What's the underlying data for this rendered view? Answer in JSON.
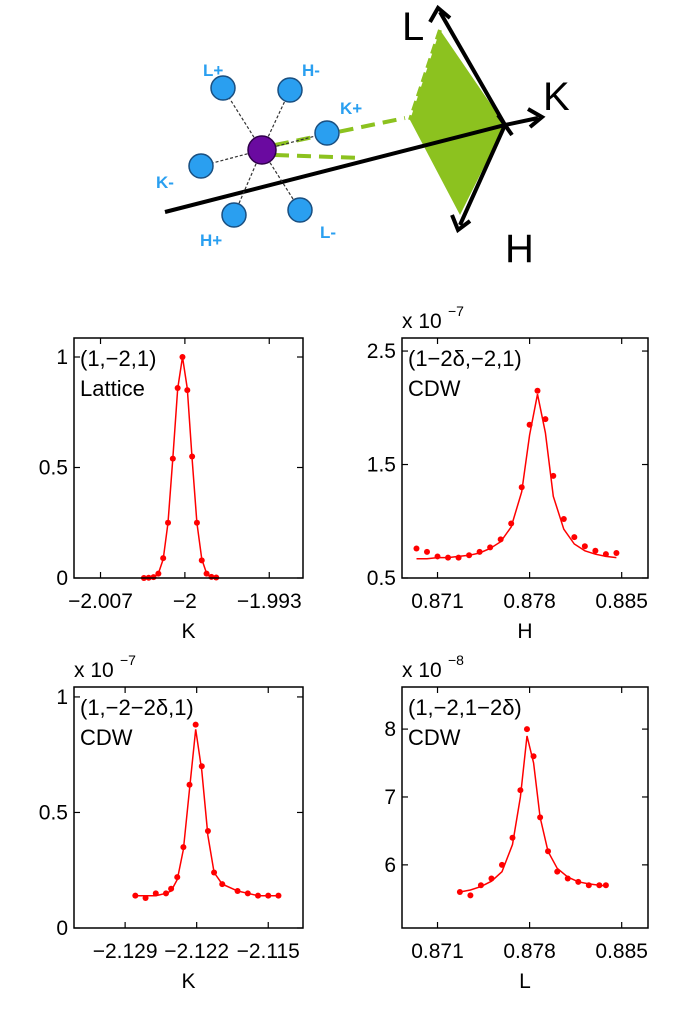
{
  "diagram": {
    "labels": [
      "L+",
      "H-",
      "K+",
      "K-",
      "H+",
      "L-"
    ],
    "axes": [
      "L",
      "K",
      "H"
    ]
  },
  "chart_data": [
    {
      "type": "line",
      "annotations": [
        "(1,−2,1)",
        "Lattice"
      ],
      "xlabel": "K",
      "x": [
        -2.0034,
        -2.003,
        -2.0026,
        -2.0022,
        -2.0018,
        -2.0014,
        -2.001,
        -2.0006,
        -2.0002,
        -1.9998,
        -1.9994,
        -1.999,
        -1.9986,
        -1.9982,
        -1.9978,
        -1.9974
      ],
      "series": [
        {
          "color": "#ff0000",
          "style": "markers",
          "values": [
            0,
            0.001,
            0.004,
            0.02,
            0.09,
            0.25,
            0.54,
            0.86,
            1,
            0.85,
            0.55,
            0.25,
            0.08,
            0.02,
            0.005,
            0.002
          ]
        },
        {
          "color": "#ff0000",
          "style": "line",
          "values": [
            0,
            0.001,
            0.004,
            0.021,
            0.085,
            0.25,
            0.54,
            0.857,
            1,
            0.857,
            0.54,
            0.25,
            0.085,
            0.021,
            0.004,
            0.001
          ]
        }
      ],
      "xlim": [
        -2.0092,
        -1.9902
      ],
      "ylim": [
        0,
        1.086
      ],
      "xticks": [
        {
          "value": -2.007,
          "label": "−2.007"
        },
        {
          "value": -2,
          "label": "−2"
        },
        {
          "value": -1.993,
          "label": "−1.993"
        }
      ],
      "yticks": [
        0,
        0.5,
        1
      ]
    },
    {
      "type": "line",
      "annotations": [
        "(1−2δ,−2,1)",
        "CDW"
      ],
      "xlabel": "H",
      "multiplier": "x 10",
      "exponent": "−7",
      "x": [
        0.8694,
        0.8702,
        0.871,
        0.8718,
        0.8726,
        0.8734,
        0.8742,
        0.875,
        0.8758,
        0.8766,
        0.8774,
        0.878,
        0.8786,
        0.8792,
        0.8798,
        0.8806,
        0.8814,
        0.8822,
        0.883,
        0.8838,
        0.8846
      ],
      "series": [
        {
          "color": "#ff0000",
          "style": "markers",
          "values": [
            0.76,
            0.73,
            0.69,
            0.68,
            0.68,
            0.7,
            0.73,
            0.77,
            0.84,
            0.98,
            1.3,
            1.85,
            2.15,
            1.9,
            1.4,
            1.02,
            0.86,
            0.78,
            0.74,
            0.71,
            0.72
          ]
        },
        {
          "color": "#ff0000",
          "style": "line",
          "values": [
            0.67,
            0.67,
            0.68,
            0.68,
            0.69,
            0.7,
            0.72,
            0.76,
            0.82,
            0.95,
            1.26,
            1.76,
            2.12,
            1.78,
            1.22,
            0.93,
            0.8,
            0.74,
            0.71,
            0.69,
            0.68
          ]
        }
      ],
      "xlim": [
        0.8683,
        0.887
      ],
      "ylim": [
        0.5,
        2.615
      ],
      "xticks": [
        0.871,
        0.878,
        0.885
      ],
      "yticks": [
        0.5,
        1.5,
        2.5
      ]
    },
    {
      "type": "line",
      "annotations": [
        "(1,−2−2δ,1)",
        "CDW"
      ],
      "xlabel": "K",
      "multiplier": "x 10",
      "exponent": "−7",
      "x": [
        -2.128,
        -2.127,
        -2.126,
        -2.125,
        -2.1245,
        -2.1239,
        -2.1233,
        -2.1227,
        -2.1221,
        -2.1215,
        -2.1209,
        -2.1203,
        -2.1195,
        -2.118,
        -2.117,
        -2.116,
        -2.115,
        -2.114
      ],
      "series": [
        {
          "color": "#ff0000",
          "style": "markers",
          "values": [
            0.14,
            0.13,
            0.15,
            0.15,
            0.17,
            0.22,
            0.35,
            0.62,
            0.88,
            0.7,
            0.42,
            0.24,
            0.19,
            0.16,
            0.15,
            0.14,
            0.14,
            0.14
          ]
        },
        {
          "color": "#ff0000",
          "style": "line",
          "values": [
            0.14,
            0.14,
            0.14,
            0.15,
            0.16,
            0.21,
            0.34,
            0.6,
            0.86,
            0.68,
            0.4,
            0.24,
            0.19,
            0.16,
            0.15,
            0.14,
            0.14,
            0.14
          ]
        }
      ],
      "xlim": [
        -2.134,
        -2.1116
      ],
      "ylim": [
        0,
        1.043
      ],
      "xticks": [
        {
          "value": -2.129,
          "label": "−2.129"
        },
        {
          "value": -2.122,
          "label": "−2.122"
        },
        {
          "value": -2.115,
          "label": "−2.115"
        }
      ],
      "yticks": [
        0,
        0.5,
        1
      ]
    },
    {
      "type": "line",
      "annotations": [
        "(1,−2,1−2δ)",
        "CDW"
      ],
      "xlabel": "L",
      "multiplier": "x 10",
      "exponent": "−8",
      "x": [
        0.8727,
        0.8735,
        0.8743,
        0.8751,
        0.8759,
        0.8767,
        0.8773,
        0.8778,
        0.8783,
        0.8788,
        0.8794,
        0.8801,
        0.8809,
        0.8817,
        0.8825,
        0.8833,
        0.8838
      ],
      "series": [
        {
          "color": "#ff0000",
          "style": "markers",
          "values": [
            5.6,
            5.55,
            5.7,
            5.8,
            6.0,
            6.4,
            7.1,
            8.0,
            7.6,
            6.7,
            6.2,
            5.9,
            5.8,
            5.75,
            5.7,
            5.7,
            5.7
          ]
        },
        {
          "color": "#ff0000",
          "style": "line",
          "values": [
            5.6,
            5.63,
            5.68,
            5.76,
            5.9,
            6.3,
            7.0,
            7.9,
            7.5,
            6.7,
            6.2,
            5.95,
            5.82,
            5.75,
            5.72,
            5.7,
            5.69
          ]
        }
      ],
      "xlim": [
        0.8683,
        0.887
      ],
      "ylim": [
        5.07,
        8.62
      ],
      "xticks": [
        0.871,
        0.878,
        0.885
      ],
      "yticks": [
        6,
        7,
        8
      ]
    }
  ]
}
